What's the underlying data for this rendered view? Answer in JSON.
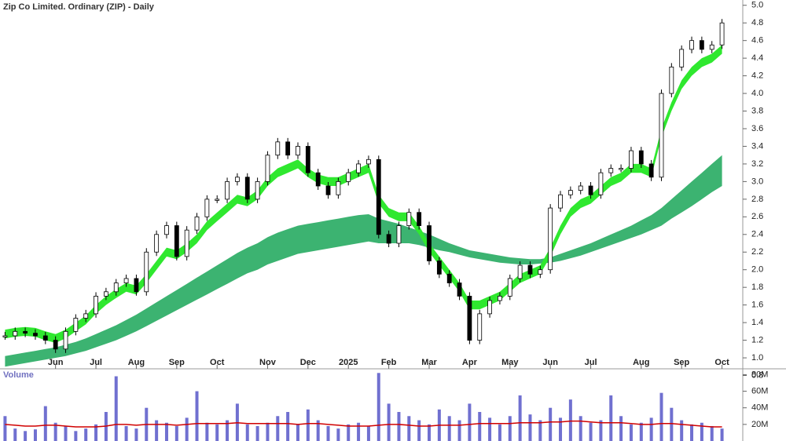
{
  "chart_data": {
    "type": "candlestick",
    "title": "Zip Co Limited. Ordinary (ZIP) - Daily",
    "categories": [
      null,
      null,
      null,
      null,
      null,
      "Jun",
      null,
      null,
      null,
      "Jul",
      null,
      null,
      null,
      "Aug",
      null,
      null,
      null,
      "Sep",
      null,
      null,
      null,
      "Oct",
      null,
      null,
      null,
      null,
      "Nov",
      null,
      null,
      null,
      "Dec",
      null,
      null,
      null,
      "2025",
      null,
      null,
      null,
      "Feb",
      null,
      null,
      null,
      "Mar",
      null,
      null,
      null,
      "Apr",
      null,
      null,
      null,
      "May",
      null,
      null,
      null,
      "Jun",
      null,
      null,
      null,
      "Jul",
      null,
      null,
      null,
      null,
      "Aug",
      null,
      null,
      null,
      "Sep",
      null,
      null,
      null,
      "Oct"
    ],
    "close": [
      1.25,
      1.3,
      1.28,
      1.25,
      1.2,
      1.1,
      1.3,
      1.45,
      1.5,
      1.7,
      1.75,
      1.85,
      1.9,
      1.75,
      2.2,
      2.4,
      2.5,
      2.15,
      2.45,
      2.6,
      2.8,
      2.8,
      3.0,
      3.05,
      2.8,
      3.0,
      3.3,
      3.45,
      3.3,
      3.4,
      3.1,
      2.95,
      2.85,
      3.0,
      3.1,
      3.2,
      3.25,
      2.4,
      2.3,
      2.5,
      2.65,
      2.5,
      2.1,
      1.95,
      1.85,
      1.7,
      1.2,
      1.5,
      1.65,
      1.7,
      1.9,
      2.05,
      1.95,
      2.0,
      2.7,
      2.85,
      2.9,
      2.95,
      2.85,
      3.1,
      3.15,
      3.15,
      3.35,
      3.2,
      3.05,
      4.0,
      4.3,
      4.5,
      4.6,
      4.5,
      4.55,
      4.8
    ],
    "bands": [
      {
        "color": "#2fe82f",
        "lower": [
          1.22,
          1.24,
          1.25,
          1.24,
          1.2,
          1.17,
          1.22,
          1.3,
          1.38,
          1.5,
          1.6,
          1.68,
          1.75,
          1.72,
          1.85,
          2.0,
          2.15,
          2.12,
          2.2,
          2.3,
          2.45,
          2.55,
          2.65,
          2.75,
          2.72,
          2.8,
          2.95,
          3.05,
          3.1,
          3.15,
          3.05,
          2.98,
          2.95,
          2.95,
          3.0,
          3.05,
          3.1,
          2.75,
          2.6,
          2.55,
          2.55,
          2.4,
          2.2,
          2.05,
          1.9,
          1.75,
          1.55,
          1.55,
          1.6,
          1.65,
          1.75,
          1.85,
          1.9,
          1.95,
          2.15,
          2.4,
          2.6,
          2.7,
          2.75,
          2.85,
          2.95,
          3.0,
          3.1,
          3.1,
          3.05,
          3.5,
          3.8,
          4.05,
          4.2,
          4.3,
          4.35,
          4.45
        ],
        "upper": [
          1.32,
          1.34,
          1.35,
          1.34,
          1.3,
          1.27,
          1.32,
          1.4,
          1.48,
          1.6,
          1.7,
          1.78,
          1.85,
          1.82,
          1.95,
          2.1,
          2.25,
          2.22,
          2.3,
          2.4,
          2.55,
          2.65,
          2.75,
          2.85,
          2.82,
          2.9,
          3.05,
          3.15,
          3.2,
          3.25,
          3.15,
          3.08,
          3.05,
          3.05,
          3.1,
          3.15,
          3.2,
          2.85,
          2.7,
          2.65,
          2.65,
          2.5,
          2.3,
          2.15,
          2.0,
          1.85,
          1.65,
          1.65,
          1.7,
          1.75,
          1.85,
          1.95,
          2.0,
          2.05,
          2.25,
          2.5,
          2.7,
          2.8,
          2.85,
          2.95,
          3.05,
          3.1,
          3.2,
          3.2,
          3.15,
          3.6,
          3.9,
          4.15,
          4.3,
          4.4,
          4.45,
          4.55
        ]
      },
      {
        "color": "#3cb371",
        "lower": [
          0.9,
          0.92,
          0.94,
          0.96,
          0.98,
          1.0,
          1.02,
          1.05,
          1.08,
          1.12,
          1.16,
          1.2,
          1.25,
          1.3,
          1.36,
          1.42,
          1.48,
          1.54,
          1.6,
          1.66,
          1.72,
          1.78,
          1.84,
          1.9,
          1.96,
          2.0,
          2.06,
          2.1,
          2.14,
          2.18,
          2.2,
          2.22,
          2.24,
          2.26,
          2.28,
          2.3,
          2.32,
          2.3,
          2.3,
          2.3,
          2.3,
          2.28,
          2.25,
          2.22,
          2.2,
          2.17,
          2.14,
          2.12,
          2.1,
          2.08,
          2.07,
          2.06,
          2.06,
          2.07,
          2.08,
          2.1,
          2.13,
          2.16,
          2.2,
          2.24,
          2.28,
          2.32,
          2.36,
          2.4,
          2.45,
          2.5,
          2.58,
          2.65,
          2.72,
          2.8,
          2.88,
          2.95
        ],
        "upper": [
          1.02,
          1.04,
          1.06,
          1.08,
          1.1,
          1.12,
          1.15,
          1.18,
          1.22,
          1.27,
          1.32,
          1.37,
          1.43,
          1.49,
          1.56,
          1.63,
          1.7,
          1.77,
          1.84,
          1.91,
          1.98,
          2.05,
          2.12,
          2.19,
          2.25,
          2.3,
          2.37,
          2.42,
          2.46,
          2.5,
          2.52,
          2.54,
          2.56,
          2.58,
          2.6,
          2.62,
          2.63,
          2.58,
          2.55,
          2.52,
          2.48,
          2.44,
          2.4,
          2.35,
          2.3,
          2.26,
          2.22,
          2.2,
          2.18,
          2.16,
          2.14,
          2.13,
          2.12,
          2.12,
          2.14,
          2.18,
          2.22,
          2.26,
          2.3,
          2.35,
          2.4,
          2.45,
          2.5,
          2.56,
          2.62,
          2.7,
          2.8,
          2.9,
          3.0,
          3.1,
          3.2,
          3.3
        ]
      }
    ],
    "ylim": [
      0.76,
      5.06
    ],
    "yticks": [
      0.8,
      {
        "value": 1,
        "label": "1.0"
      },
      1.2,
      1.4,
      1.6,
      1.8,
      {
        "value": 2,
        "label": "2.0"
      },
      2.2,
      2.4,
      2.6,
      2.8,
      {
        "value": 3,
        "label": "3.0"
      },
      3.2,
      3.4,
      3.6,
      3.8,
      {
        "value": 4,
        "label": "4.0"
      },
      4.2,
      4.4,
      4.6,
      4.8,
      {
        "value": 5,
        "label": "5.0"
      }
    ],
    "volume": {
      "label": "Volume",
      "color": "#7070d0",
      "values": [
        30,
        15,
        12,
        14,
        42,
        22,
        18,
        12,
        15,
        20,
        35,
        78,
        18,
        15,
        40,
        25,
        22,
        18,
        28,
        60,
        22,
        20,
        25,
        45,
        20,
        18,
        22,
        30,
        35,
        20,
        38,
        25,
        18,
        15,
        20,
        22,
        18,
        82,
        45,
        35,
        30,
        25,
        20,
        38,
        30,
        25,
        45,
        35,
        28,
        20,
        30,
        55,
        32,
        25,
        40,
        28,
        50,
        30,
        22,
        25,
        55,
        30,
        20,
        22,
        28,
        58,
        40,
        25,
        20,
        22,
        18,
        15
      ],
      "average": [
        20,
        19,
        18,
        18,
        19,
        19,
        18,
        17,
        17,
        17,
        18,
        20,
        20,
        19,
        20,
        20,
        20,
        19,
        20,
        21,
        21,
        21,
        21,
        22,
        21,
        21,
        21,
        21,
        21,
        20,
        21,
        21,
        20,
        19,
        18,
        18,
        18,
        19,
        20,
        20,
        19,
        18,
        18,
        19,
        19,
        19,
        20,
        21,
        21,
        21,
        21,
        22,
        22,
        22,
        23,
        23,
        24,
        24,
        23,
        22,
        22,
        22,
        21,
        20,
        20,
        21,
        21,
        20,
        19,
        18,
        17,
        17
      ],
      "average_color": "#d00000",
      "ylim": [
        0,
        87
      ],
      "yticks": [
        {
          "value": 20,
          "label": "20M"
        },
        {
          "value": 40,
          "label": "40M"
        },
        {
          "value": 60,
          "label": "60M"
        },
        {
          "value": 80,
          "label": "80M"
        }
      ]
    }
  }
}
